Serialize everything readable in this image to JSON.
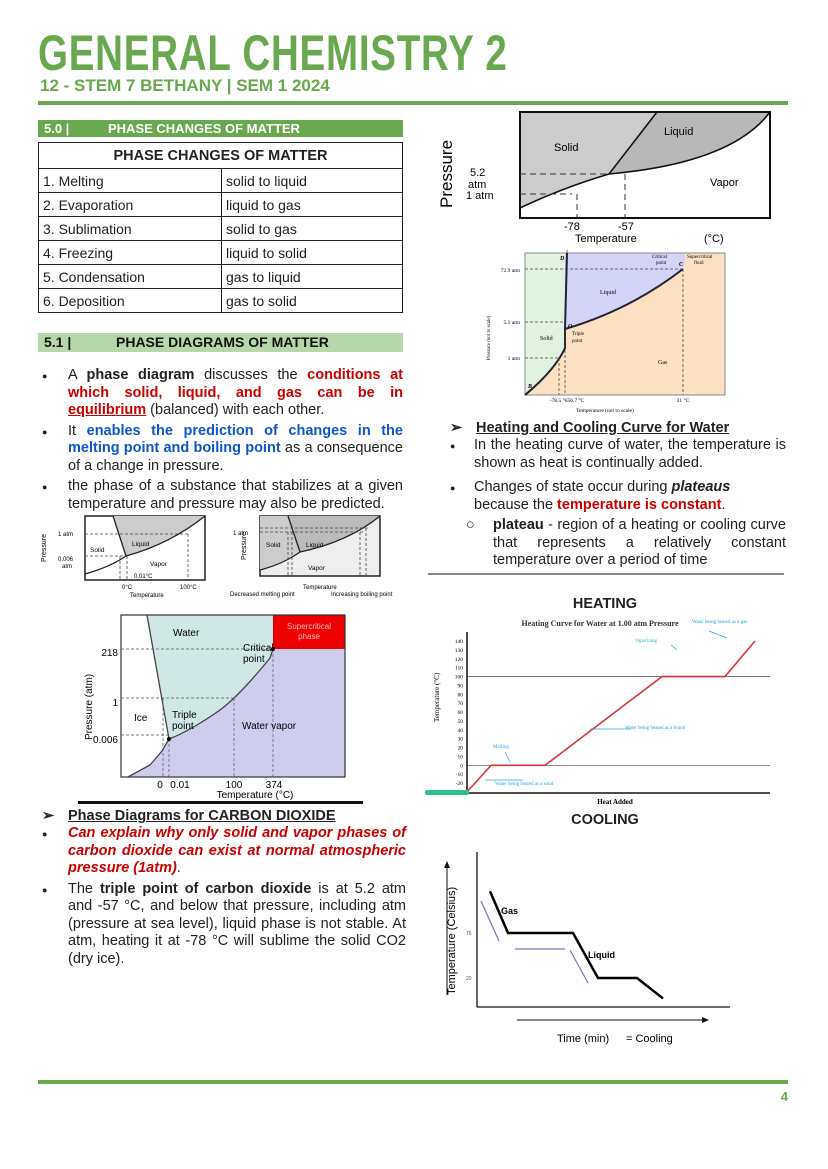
{
  "header": {
    "title": "GENERAL CHEMISTRY 2",
    "subtitle": "12 - STEM 7 BETHANY | SEM 1 2024"
  },
  "colors": {
    "brand_green": "#6aa84f",
    "light_green": "#b6d7a8",
    "red": "#cc0000",
    "blue": "#1155cc"
  },
  "section50": {
    "num": "5.0 |",
    "title": "PHASE CHANGES OF MATTER"
  },
  "table": {
    "header": "PHASE CHANGES OF MATTER",
    "rows": [
      [
        "1. Melting",
        "solid to liquid"
      ],
      [
        "2. Evaporation",
        "liquid to gas"
      ],
      [
        "3. Sublimation",
        "solid to gas"
      ],
      [
        "4. Freezing",
        "liquid to solid"
      ],
      [
        "5. Condensation",
        "gas to liquid"
      ],
      [
        "6. Deposition",
        "gas to solid"
      ]
    ]
  },
  "section51": {
    "num": "5.1 |",
    "title": "PHASE DIAGRAMS OF MATTER"
  },
  "bullets51": {
    "b1": {
      "a": "A ",
      "b": "phase diagram",
      "c": " discusses the ",
      "d": "conditions at which solid, liquid, and gas can be in ",
      "e": "equilibrium",
      "f": " (balanced) with each other."
    },
    "b2": {
      "a": "It ",
      "b": "enables the prediction of changes in the melting point and boiling point",
      "c": " as a consequence of a change in pressure."
    },
    "b3": "the phase of a substance that stabilizes at a given temperature and pressure may also be predicted."
  },
  "small_diagram_1": {
    "ylabel": "Pressure",
    "p1": "1 atm",
    "p2": "0.006",
    "p2b": "atm",
    "solid": "Solid",
    "liquid": "Liquid",
    "vapor": "Vapor",
    "tp": "0.01°C",
    "t0": "0°C",
    "t100": "100°C",
    "xlabel": "Temperature"
  },
  "small_diagram_2": {
    "ylabel": "Pressure",
    "p1": "1 atm",
    "solid": "Solid",
    "liquid": "Liquid",
    "vapor": "Vapor",
    "xlabel": "Temperature",
    "mp": "Decreased melting point",
    "bp": "Increasing boiling point"
  },
  "water_diagram": {
    "ylabel": "Pressure (atm)",
    "xlabel": "Temperature (°C)",
    "y_ticks": [
      "218",
      "1",
      "0.006"
    ],
    "x_ticks": [
      "0",
      "0.01",
      "100",
      "374"
    ],
    "water": "Water",
    "ice": "Ice",
    "vapor": "Water vapor",
    "triple": [
      "Triple",
      "point"
    ],
    "critical": [
      "Critical",
      "point"
    ],
    "super": [
      "Supercritical",
      "phase"
    ]
  },
  "co2_section": {
    "heading": "Phase Diagrams for CARBON DIOXIDE",
    "b1a": "Can explain why only solid and vapor phases of carbon dioxide can exist at normal atmospheric pressure (1atm)",
    "b1b": ".",
    "b2a": "The ",
    "b2b": "triple point of carbon dioxide",
    "b2c": " is at 5.2 atm and -57 °C, and below that pressure, including atm (pressure at sea level), liquid phase is not stable. At atm, heating it at -78 °C will sublime the solid CO2 (dry ice)."
  },
  "co2_diagram_1": {
    "ylabel": "Pressure",
    "p1": "5.2",
    "p1b": "atm",
    "p2": "1 atm",
    "solid": "Solid",
    "liquid": "Liquid",
    "vapor": "Vapor",
    "t1": "-78",
    "t2": "-57",
    "xlabel": "Temperature",
    "unit": "(°C)"
  },
  "co2_diagram_2": {
    "ylabel": "Pressure (not to scale)",
    "xlabel": "Temperature (not to scale)",
    "p": [
      "72.9 atm",
      "5.1 atm",
      "1 atm"
    ],
    "t": [
      "-78.5 °C",
      "-56.7 °C",
      "31 °C"
    ],
    "solid": "Solid",
    "liquid": "Liquid",
    "gas": "Gas",
    "D": "D",
    "C": "C",
    "O": "O",
    "B": "B",
    "critical": [
      "Critical",
      "point"
    ],
    "super": [
      "Supercritical",
      "fluid"
    ],
    "triple": [
      "Triple",
      "point"
    ]
  },
  "heating_section": {
    "heading": "Heating and Cooling Curve for Water",
    "b1": "In the heating curve of water, the temperature is shown as heat is continually added.",
    "b2a": "Changes of state occur during ",
    "b2b": "plateaus",
    "b2c": " because the ",
    "b2d": "temperature is constant",
    "b2e": ".",
    "sub_a": "plateau",
    "sub_b": " - region of a heating or cooling curve that represents a relatively constant temperature over a period of time"
  },
  "chart_data": [
    {
      "type": "line",
      "heading": "HEATING",
      "title": "Heating Curve for Water at 1.00 atm Pressure",
      "xlabel": "Heat Added",
      "ylabel": "Temperature (°C)",
      "ylim": [
        -30,
        140
      ],
      "y_ticks": [
        -30,
        -20,
        -10,
        0,
        10,
        20,
        30,
        40,
        50,
        60,
        70,
        80,
        90,
        100,
        110,
        120,
        130,
        140
      ],
      "x": [
        0,
        8,
        26,
        65,
        86,
        96
      ],
      "y": [
        -30,
        0,
        0,
        100,
        100,
        140
      ],
      "reference_lines": [
        0,
        100
      ],
      "annotations": [
        "Water being heated as a gas",
        "Vaporizing",
        "Water being heated as a liquid",
        "Melting",
        "Water being heated as a solid"
      ],
      "line_color": "#d9343f",
      "annotation_color": "#2aa6d6"
    },
    {
      "type": "line",
      "heading": "COOLING",
      "xlabel": "Time (min)",
      "xnote": "= Cooling",
      "ylabel": "Temperature  (Celsius)",
      "y_ticks": [
        75,
        20
      ],
      "x": [
        13,
        31,
        96,
        121,
        160,
        186
      ],
      "y": [
        126,
        75,
        75,
        20,
        20,
        -5
      ],
      "labels": [
        "Gas",
        "Liquid"
      ],
      "line_color": "#000000"
    }
  ],
  "footer": {
    "page": "4"
  }
}
